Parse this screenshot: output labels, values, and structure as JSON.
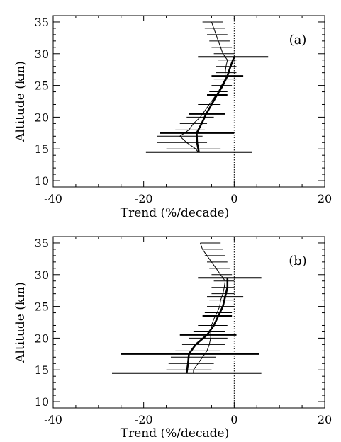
{
  "chart_data": [
    {
      "type": "line",
      "panel_label": "(a)",
      "xlabel": "Trend (%/decade)",
      "ylabel": "Altitude (km)",
      "xlim": [
        -40,
        20
      ],
      "ylim": [
        9,
        36
      ],
      "xticks": [
        -40,
        -20,
        0,
        20
      ],
      "yticks": [
        10,
        15,
        20,
        25,
        30,
        35
      ],
      "zero_line": "dotted",
      "grid": false,
      "legend": "none",
      "series": [
        {
          "style": "thin",
          "altitude": [
            35,
            34,
            33,
            32,
            31,
            30,
            29,
            28,
            27,
            26,
            25,
            24,
            23,
            22,
            21,
            20,
            19,
            18,
            17,
            16,
            15,
            14.5
          ],
          "trend": [
            -5,
            -4.5,
            -4,
            -3.5,
            -3,
            -2.5,
            -1.5,
            -1.8,
            -2,
            -2,
            -2.8,
            -3.5,
            -4.5,
            -5.5,
            -6.5,
            -7.5,
            -9,
            -10,
            -12,
            -10.5,
            -8.5,
            -8
          ]
        },
        {
          "style": "thick",
          "altitude": [
            29.5,
            28,
            26.5,
            25,
            23.5,
            22,
            20.5,
            19,
            17.5,
            16,
            14.5
          ],
          "trend": [
            0,
            -0.8,
            -1.5,
            -2.5,
            -3.8,
            -5,
            -6.2,
            -7.2,
            -8.3,
            -8.2,
            -7.8
          ]
        }
      ],
      "error_bars": [
        {
          "altitude": 35,
          "low": -7,
          "high": -2.5,
          "thick": false
        },
        {
          "altitude": 34,
          "low": -6.5,
          "high": -2,
          "thick": false
        },
        {
          "altitude": 33,
          "low": -6,
          "high": -1.5,
          "thick": false
        },
        {
          "altitude": 32,
          "low": -5.5,
          "high": -1,
          "thick": false
        },
        {
          "altitude": 31,
          "low": -5,
          "high": -0.5,
          "thick": false
        },
        {
          "altitude": 30,
          "low": -4.5,
          "high": 0,
          "thick": false
        },
        {
          "altitude": 29.5,
          "low": -8,
          "high": 7.5,
          "thick": true
        },
        {
          "altitude": 29,
          "low": -3.5,
          "high": 0.5,
          "thick": false
        },
        {
          "altitude": 28,
          "low": -4,
          "high": 0.5,
          "thick": false
        },
        {
          "altitude": 27,
          "low": -4,
          "high": 0.5,
          "thick": false
        },
        {
          "altitude": 26.5,
          "low": -5,
          "high": 2,
          "thick": true
        },
        {
          "altitude": 26,
          "low": -4.5,
          "high": 0.5,
          "thick": false
        },
        {
          "altitude": 25,
          "low": -5,
          "high": -0.5,
          "thick": false
        },
        {
          "altitude": 24,
          "low": -5.5,
          "high": -1.5,
          "thick": false
        },
        {
          "altitude": 23.5,
          "low": -6,
          "high": -1.5,
          "thick": true
        },
        {
          "altitude": 23,
          "low": -7,
          "high": -2,
          "thick": false
        },
        {
          "altitude": 22,
          "low": -8,
          "high": -3,
          "thick": false
        },
        {
          "altitude": 21,
          "low": -9,
          "high": -4,
          "thick": false
        },
        {
          "altitude": 20.5,
          "low": -10,
          "high": -2,
          "thick": true
        },
        {
          "altitude": 20,
          "low": -10.5,
          "high": -4.5,
          "thick": false
        },
        {
          "altitude": 19,
          "low": -12,
          "high": -6,
          "thick": false
        },
        {
          "altitude": 18,
          "low": -13,
          "high": -6.5,
          "thick": false
        },
        {
          "altitude": 17.5,
          "low": -16.5,
          "high": 0,
          "thick": true
        },
        {
          "altitude": 17,
          "low": -17,
          "high": -7,
          "thick": false
        },
        {
          "altitude": 16,
          "low": -17,
          "high": -6,
          "thick": false
        },
        {
          "altitude": 15,
          "low": -15,
          "high": -3,
          "thick": false
        },
        {
          "altitude": 14.5,
          "low": -19.5,
          "high": 4,
          "thick": true
        }
      ]
    },
    {
      "type": "line",
      "panel_label": "(b)",
      "xlabel": "Trend (%/decade)",
      "ylabel": "Altitude (km)",
      "xlim": [
        -40,
        20
      ],
      "ylim": [
        9,
        36
      ],
      "xticks": [
        -40,
        -20,
        0,
        20
      ],
      "yticks": [
        10,
        15,
        20,
        25,
        30,
        35
      ],
      "zero_line": "dotted",
      "grid": false,
      "legend": "none",
      "series": [
        {
          "style": "thin",
          "altitude": [
            35,
            34,
            33,
            32,
            31,
            30,
            29,
            28,
            27,
            26,
            25,
            24,
            23,
            22,
            21,
            20,
            19,
            18,
            17,
            16,
            15,
            14.5
          ],
          "trend": [
            -7.5,
            -7,
            -6,
            -5,
            -4,
            -3,
            -2,
            -2.2,
            -2.5,
            -3,
            -3.2,
            -3.8,
            -4.5,
            -5,
            -5.2,
            -5.2,
            -5.5,
            -6,
            -7,
            -8,
            -9,
            -9
          ]
        },
        {
          "style": "thick",
          "altitude": [
            29.5,
            28,
            26.5,
            25,
            23.5,
            22,
            20.5,
            19,
            17.5,
            16,
            14.5
          ],
          "trend": [
            -1.5,
            -1.5,
            -2,
            -2.5,
            -3.5,
            -4.5,
            -6,
            -8.5,
            -10,
            -10.2,
            -10.5
          ]
        }
      ],
      "error_bars": [
        {
          "altitude": 35,
          "low": -7.5,
          "high": -3,
          "thick": false
        },
        {
          "altitude": 34,
          "low": -7,
          "high": -2.5,
          "thick": false
        },
        {
          "altitude": 33,
          "low": -6.5,
          "high": -2,
          "thick": false
        },
        {
          "altitude": 32,
          "low": -6,
          "high": -1.5,
          "thick": false
        },
        {
          "altitude": 31,
          "low": -5.5,
          "high": -1,
          "thick": false
        },
        {
          "altitude": 30,
          "low": -5,
          "high": -0.5,
          "thick": false
        },
        {
          "altitude": 29.5,
          "low": -8,
          "high": 6,
          "thick": true
        },
        {
          "altitude": 29,
          "low": -4.5,
          "high": 0,
          "thick": false
        },
        {
          "altitude": 28,
          "low": -5,
          "high": 0,
          "thick": false
        },
        {
          "altitude": 27,
          "low": -5,
          "high": 0,
          "thick": false
        },
        {
          "altitude": 26.5,
          "low": -6,
          "high": 2,
          "thick": true
        },
        {
          "altitude": 26,
          "low": -5.5,
          "high": 0,
          "thick": false
        },
        {
          "altitude": 25,
          "low": -6,
          "high": 0,
          "thick": false
        },
        {
          "altitude": 24,
          "low": -6.5,
          "high": -0.5,
          "thick": false
        },
        {
          "altitude": 23.5,
          "low": -7,
          "high": -0.5,
          "thick": true
        },
        {
          "altitude": 23,
          "low": -7.5,
          "high": -1,
          "thick": false
        },
        {
          "altitude": 22,
          "low": -8,
          "high": -1.5,
          "thick": false
        },
        {
          "altitude": 21,
          "low": -9,
          "high": -2,
          "thick": false
        },
        {
          "altitude": 20.5,
          "low": -12,
          "high": 0.5,
          "thick": true
        },
        {
          "altitude": 20,
          "low": -10,
          "high": -1.5,
          "thick": false
        },
        {
          "altitude": 19,
          "low": -11.5,
          "high": -2,
          "thick": false
        },
        {
          "altitude": 18,
          "low": -13,
          "high": -3,
          "thick": false
        },
        {
          "altitude": 17.5,
          "low": -25,
          "high": 5.5,
          "thick": true
        },
        {
          "altitude": 17,
          "low": -14,
          "high": -4,
          "thick": false
        },
        {
          "altitude": 16,
          "low": -14.5,
          "high": -4.5,
          "thick": false
        },
        {
          "altitude": 15,
          "low": -15,
          "high": -5,
          "thick": false
        },
        {
          "altitude": 14.5,
          "low": -27,
          "high": 6,
          "thick": true
        }
      ]
    }
  ]
}
